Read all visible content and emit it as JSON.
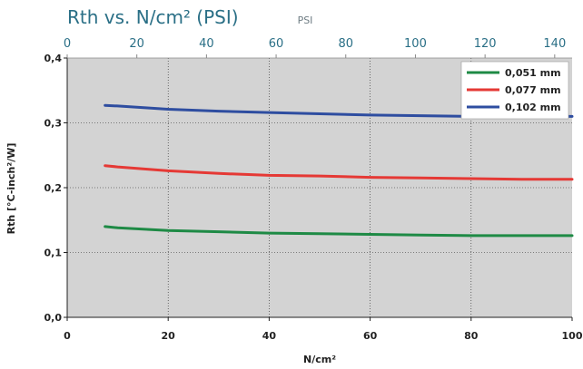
{
  "chart_data": {
    "type": "line",
    "title": "Rth vs. N/cm² (PSI)",
    "xlabel": "N/cm²",
    "ylabel": "Rth [°C-inch²/W]",
    "secondary_xlabel": "PSI",
    "xlim": [
      0,
      100
    ],
    "ylim": [
      0,
      0.4
    ],
    "secondary_xlim": [
      0,
      145
    ],
    "x_ticks": [
      0,
      20,
      40,
      60,
      80,
      100
    ],
    "x_tick_labels": [
      "0",
      "20",
      "40",
      "60",
      "80",
      "100"
    ],
    "y_ticks": [
      0,
      0.1,
      0.2,
      0.3,
      0.4
    ],
    "y_tick_labels": [
      "0,0",
      "0,1",
      "0,2",
      "0,3",
      "0,4"
    ],
    "secondary_x_ticks": [
      0,
      20,
      40,
      60,
      80,
      100,
      120,
      140
    ],
    "secondary_x_tick_labels": [
      "0",
      "20",
      "40",
      "60",
      "80",
      "100",
      "120",
      "140"
    ],
    "grid": true,
    "legend_position": "top-right",
    "background_color": "#d3d3d3",
    "series": [
      {
        "name": "0,051 mm",
        "color": "#1e8a45",
        "x": [
          7.5,
          10,
          20,
          30,
          40,
          50,
          60,
          70,
          80,
          90,
          100
        ],
        "y": [
          0.14,
          0.138,
          0.134,
          0.132,
          0.13,
          0.129,
          0.128,
          0.127,
          0.126,
          0.126,
          0.126
        ]
      },
      {
        "name": "0,077 mm",
        "color": "#e53935",
        "x": [
          7.5,
          10,
          20,
          30,
          40,
          50,
          60,
          70,
          80,
          90,
          100
        ],
        "y": [
          0.234,
          0.232,
          0.226,
          0.222,
          0.219,
          0.218,
          0.216,
          0.215,
          0.214,
          0.213,
          0.213
        ]
      },
      {
        "name": "0,102 mm",
        "color": "#2e4da0",
        "x": [
          7.5,
          10,
          20,
          30,
          40,
          50,
          60,
          70,
          80,
          90,
          100
        ],
        "y": [
          0.327,
          0.326,
          0.321,
          0.318,
          0.316,
          0.314,
          0.312,
          0.311,
          0.31,
          0.31,
          0.31
        ]
      }
    ]
  }
}
